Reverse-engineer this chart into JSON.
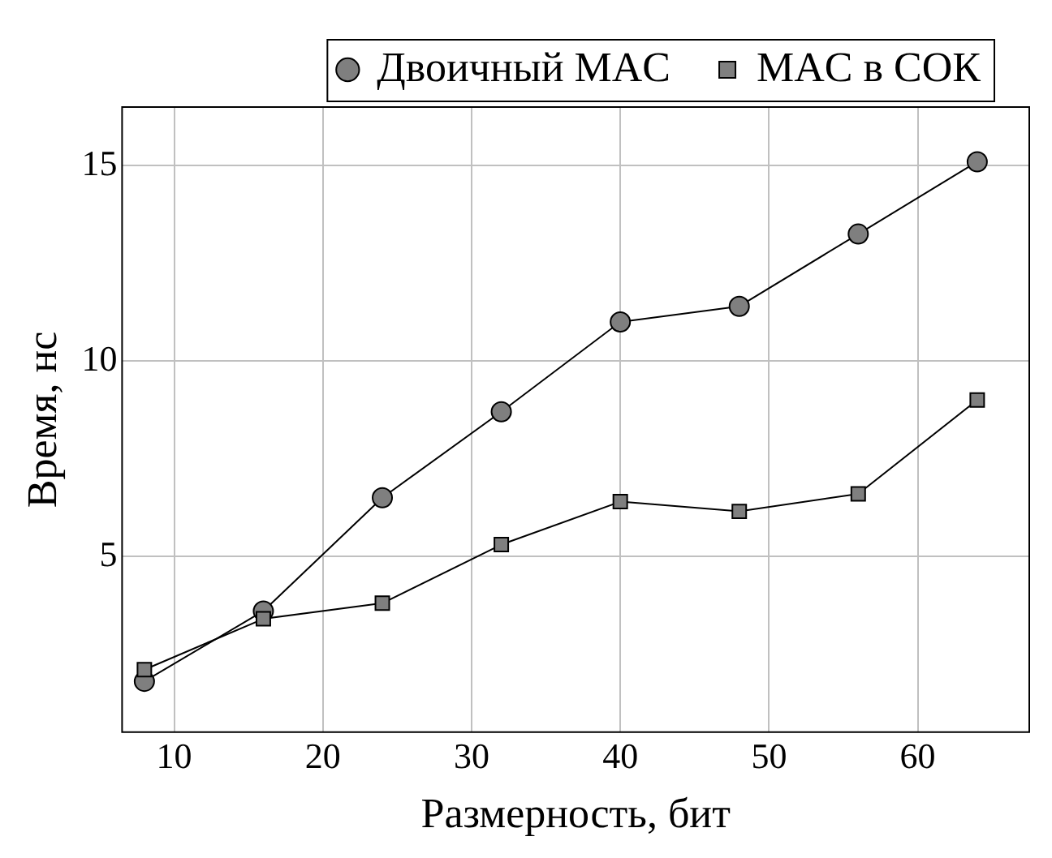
{
  "chart_data": {
    "type": "line",
    "xlabel": "Размерность, бит",
    "ylabel": "Время, нс",
    "x": [
      8,
      16,
      24,
      32,
      40,
      48,
      56,
      64
    ],
    "series": [
      {
        "name": "Двоичный MAC",
        "color": "#7f7f7f",
        "marker": "circle",
        "values": [
          1.8,
          3.6,
          6.5,
          8.7,
          11.0,
          11.4,
          13.25,
          15.1
        ]
      },
      {
        "name": "MAC в СОК",
        "color": "#7f7f7f",
        "marker": "square",
        "values": [
          2.1,
          3.4,
          3.8,
          5.3,
          6.4,
          6.15,
          6.6,
          9.0
        ]
      }
    ],
    "xlim": [
      6.5,
      67.5
    ],
    "xticks": [
      10,
      20,
      30,
      40,
      50,
      60
    ],
    "ylim": [
      0.5,
      16.5
    ],
    "yticks": [
      5,
      10,
      15
    ],
    "grid": true,
    "legend": "top right",
    "line_style": "solid"
  }
}
